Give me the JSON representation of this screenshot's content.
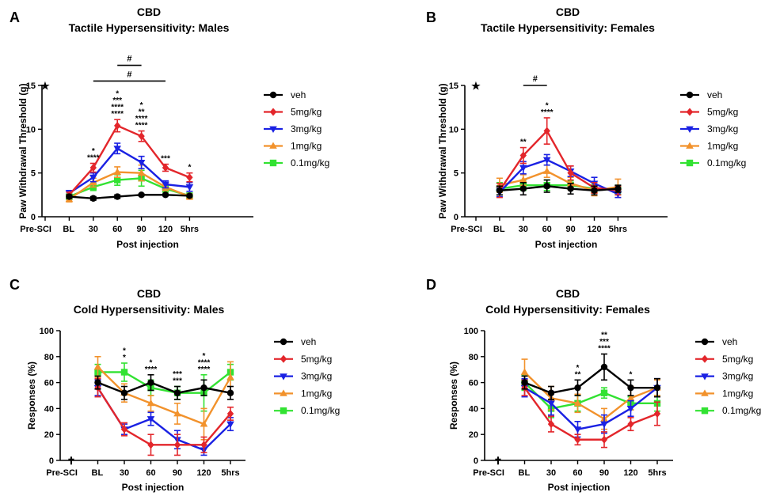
{
  "colors": {
    "veh": "#000000",
    "5mg/kg": "#e3262b",
    "3mg/kg": "#1a21e3",
    "1mg/kg": "#f2922c",
    "0.1mg/kg": "#32e232"
  },
  "chart_data": [
    {
      "panel": "A",
      "type": "line",
      "title": "CBD",
      "subtitle": "Tactile Hypersensitivity: Males",
      "xlabel": "Post injection",
      "ylabel": "Paw Withdrawal Threshold (g)",
      "categories": [
        "Pre-SCI",
        "BL",
        "30",
        "60",
        "90",
        "120",
        "5hrs"
      ],
      "ylim": [
        0,
        15
      ],
      "yticks": [
        0,
        5,
        10,
        15
      ],
      "prescI_marker": "★",
      "legend": [
        "veh",
        "5mg/kg",
        "3mg/kg",
        "1mg/kg",
        "0.1mg/kg"
      ],
      "series": [
        {
          "name": "veh",
          "marker": "circle",
          "values": [
            null,
            2.3,
            2.1,
            2.3,
            2.5,
            2.5,
            2.4
          ],
          "err": [
            null,
            0.2,
            0.2,
            0.2,
            0.1,
            0.1,
            0.1
          ]
        },
        {
          "name": "5mg/kg",
          "marker": "diamond",
          "values": [
            null,
            2.5,
            5.6,
            10.4,
            9.2,
            5.6,
            4.5
          ],
          "err": [
            null,
            0.3,
            0.5,
            0.7,
            0.6,
            0.4,
            0.5
          ]
        },
        {
          "name": "3mg/kg",
          "marker": "tri-down",
          "values": [
            null,
            2.7,
            4.5,
            7.8,
            6.2,
            3.7,
            3.4
          ],
          "err": [
            null,
            0.3,
            0.5,
            0.6,
            0.7,
            0.4,
            0.5
          ]
        },
        {
          "name": "1mg/kg",
          "marker": "tri-up",
          "values": [
            null,
            2.0,
            3.9,
            5.1,
            5.0,
            3.4,
            2.3
          ],
          "err": [
            null,
            0.3,
            0.5,
            0.6,
            0.9,
            0.4,
            0.3
          ]
        },
        {
          "name": "0.1mg/kg",
          "marker": "square",
          "values": [
            null,
            2.3,
            3.4,
            4.2,
            4.4,
            3.2,
            2.4
          ],
          "err": [
            null,
            0.3,
            0.4,
            0.6,
            0.9,
            0.4,
            0.3
          ]
        }
      ],
      "sig": [
        {
          "cat": "30",
          "lines": [
            {
              "t": "*",
              "c": "3mg/kg"
            },
            {
              "t": "****",
              "c": "5mg/kg"
            }
          ]
        },
        {
          "cat": "60",
          "lines": [
            {
              "t": "*",
              "c": "0.1mg/kg"
            },
            {
              "t": "***",
              "c": "1mg/kg"
            },
            {
              "t": "****",
              "c": "3mg/kg"
            },
            {
              "t": "****",
              "c": "5mg/kg"
            }
          ]
        },
        {
          "cat": "90",
          "lines": [
            {
              "t": "*",
              "c": "0.1mg/kg"
            },
            {
              "t": "**",
              "c": "1mg/kg"
            },
            {
              "t": "****",
              "c": "3mg/kg"
            },
            {
              "t": "****",
              "c": "5mg/kg"
            }
          ]
        },
        {
          "cat": "120",
          "lines": [
            {
              "t": "***",
              "c": "5mg/kg"
            }
          ]
        },
        {
          "cat": "5hrs",
          "lines": [
            {
              "t": "*",
              "c": "5mg/kg"
            }
          ]
        }
      ],
      "brackets": [
        {
          "from": "60",
          "to": "90",
          "label": "#",
          "c": "3mg/kg",
          "y": 17.3
        },
        {
          "from": "30",
          "to": "120",
          "label": "#",
          "c": "5mg/kg",
          "y": 15.5
        }
      ]
    },
    {
      "panel": "B",
      "type": "line",
      "title": "CBD",
      "subtitle": "Tactile Hypersensitivity: Females",
      "xlabel": "Post injection",
      "ylabel": "Paw Withdrawal Threshold (g)",
      "categories": [
        "Pre-SCI",
        "BL",
        "30",
        "60",
        "90",
        "120",
        "5hrs"
      ],
      "ylim": [
        0,
        15
      ],
      "yticks": [
        0,
        5,
        10,
        15
      ],
      "prescI_marker": "★",
      "legend": [
        "veh",
        "5mg/kg",
        "3mg/kg",
        "1mg/kg",
        "0.1mg/kg"
      ],
      "series": [
        {
          "name": "veh",
          "marker": "circle",
          "values": [
            null,
            3.0,
            3.2,
            3.5,
            3.2,
            3.0,
            3.2
          ],
          "err": [
            null,
            0.5,
            0.7,
            0.7,
            0.6,
            0.5,
            0.4
          ]
        },
        {
          "name": "5mg/kg",
          "marker": "diamond",
          "values": [
            null,
            3.0,
            7.0,
            9.8,
            5.0,
            3.3,
            3.0
          ],
          "err": [
            null,
            0.8,
            0.9,
            1.5,
            0.8,
            0.6,
            0.5
          ]
        },
        {
          "name": "3mg/kg",
          "marker": "tri-down",
          "values": [
            null,
            2.8,
            5.6,
            6.5,
            5.2,
            3.8,
            2.6
          ],
          "err": [
            null,
            0.5,
            0.7,
            0.6,
            0.6,
            0.7,
            0.4
          ]
        },
        {
          "name": "1mg/kg",
          "marker": "tri-up",
          "values": [
            null,
            3.6,
            4.2,
            5.2,
            3.8,
            3.0,
            3.4
          ],
          "err": [
            null,
            0.8,
            0.6,
            0.7,
            0.7,
            0.6,
            0.9
          ]
        },
        {
          "name": "0.1mg/kg",
          "marker": "square",
          "values": [
            null,
            3.2,
            3.6,
            3.6,
            3.6,
            3.2,
            3.1
          ],
          "err": [
            null,
            0.7,
            0.6,
            0.6,
            0.5,
            0.5,
            0.5
          ]
        }
      ],
      "sig": [
        {
          "cat": "30",
          "lines": [
            {
              "t": "**",
              "c": "5mg/kg"
            }
          ]
        },
        {
          "cat": "60",
          "lines": [
            {
              "t": "*",
              "c": "3mg/kg"
            },
            {
              "t": "****",
              "c": "5mg/kg"
            }
          ]
        }
      ],
      "brackets": [
        {
          "from": "30",
          "to": "60",
          "label": "#",
          "c": "5mg/kg",
          "y": 15.0
        }
      ]
    },
    {
      "panel": "C",
      "type": "line",
      "title": "CBD",
      "subtitle": "Cold Hypersensitivity: Males",
      "xlabel": "Post injection",
      "ylabel": "Responses (%)",
      "categories": [
        "Pre-SCI",
        "BL",
        "30",
        "60",
        "90",
        "120",
        "5hrs"
      ],
      "ylim": [
        0,
        100
      ],
      "yticks": [
        0,
        20,
        40,
        60,
        80,
        100
      ],
      "prescI_marker": "✝",
      "legend": [
        "veh",
        "5mg/kg",
        "3mg/kg",
        "1mg/kg",
        "0.1mg/kg"
      ],
      "series": [
        {
          "name": "veh",
          "marker": "circle",
          "values": [
            null,
            60,
            52,
            60,
            52,
            56,
            52
          ],
          "err": [
            null,
            5,
            5,
            6,
            5,
            6,
            5
          ]
        },
        {
          "name": "5mg/kg",
          "marker": "diamond",
          "values": [
            null,
            56,
            24,
            12,
            12,
            12,
            36
          ],
          "err": [
            null,
            7,
            5,
            8,
            8,
            6,
            5
          ]
        },
        {
          "name": "3mg/kg",
          "marker": "tri-down",
          "values": [
            null,
            56,
            24,
            32,
            16,
            8,
            28
          ],
          "err": [
            null,
            6,
            4,
            5,
            7,
            4,
            5
          ]
        },
        {
          "name": "1mg/kg",
          "marker": "tri-up",
          "values": [
            null,
            72,
            52,
            44,
            36,
            28,
            64
          ],
          "err": [
            null,
            8,
            7,
            6,
            8,
            12,
            12
          ]
        },
        {
          "name": "0.1mg/kg",
          "marker": "square",
          "values": [
            null,
            68,
            68,
            56,
            52,
            52,
            68
          ],
          "err": [
            null,
            6,
            7,
            6,
            5,
            14,
            6
          ]
        }
      ],
      "sig": [
        {
          "cat": "30",
          "lines": [
            {
              "t": "*",
              "c": "3mg/kg"
            },
            {
              "t": "*",
              "c": "5mg/kg"
            }
          ]
        },
        {
          "cat": "60",
          "lines": [
            {
              "t": "*",
              "c": "3mg/kg"
            },
            {
              "t": "****",
              "c": "5mg/kg"
            }
          ]
        },
        {
          "cat": "90",
          "lines": [
            {
              "t": "***",
              "c": "3mg/kg"
            },
            {
              "t": "***",
              "c": "5mg/kg"
            }
          ]
        },
        {
          "cat": "120",
          "lines": [
            {
              "t": "*",
              "c": "1mg/kg"
            },
            {
              "t": "****",
              "c": "3mg/kg"
            },
            {
              "t": "****",
              "c": "5mg/kg"
            }
          ]
        }
      ],
      "brackets": []
    },
    {
      "panel": "D",
      "type": "line",
      "title": "CBD",
      "subtitle": "Cold Hypersensitivity: Females",
      "xlabel": "Post injection",
      "ylabel": "Responses (%)",
      "categories": [
        "Pre-SCI",
        "BL",
        "30",
        "60",
        "90",
        "120",
        "5hrs"
      ],
      "ylim": [
        0,
        100
      ],
      "yticks": [
        0,
        20,
        40,
        60,
        80,
        100
      ],
      "prescI_marker": "✝",
      "legend": [
        "veh",
        "5mg/kg",
        "3mg/kg",
        "1mg/kg",
        "0.1mg/kg"
      ],
      "series": [
        {
          "name": "veh",
          "marker": "circle",
          "values": [
            null,
            60,
            52,
            56,
            72,
            56,
            56
          ],
          "err": [
            null,
            5,
            5,
            6,
            10,
            6,
            7
          ]
        },
        {
          "name": "5mg/kg",
          "marker": "diamond",
          "values": [
            null,
            56,
            28,
            16,
            16,
            28,
            36
          ],
          "err": [
            null,
            6,
            6,
            4,
            6,
            5,
            9
          ]
        },
        {
          "name": "3mg/kg",
          "marker": "tri-down",
          "values": [
            null,
            56,
            44,
            24,
            28,
            40,
            56
          ],
          "err": [
            null,
            7,
            9,
            6,
            7,
            6,
            7
          ]
        },
        {
          "name": "1mg/kg",
          "marker": "tri-up",
          "values": [
            null,
            68,
            48,
            44,
            32,
            48,
            56
          ],
          "err": [
            null,
            10,
            9,
            7,
            8,
            9,
            6
          ]
        },
        {
          "name": "0.1mg/kg",
          "marker": "square",
          "values": [
            null,
            60,
            40,
            44,
            52,
            44,
            44
          ],
          "err": [
            null,
            6,
            7,
            6,
            4,
            5,
            6
          ]
        }
      ],
      "sig": [
        {
          "cat": "60",
          "lines": [
            {
              "t": "*",
              "c": "3mg/kg"
            },
            {
              "t": "**",
              "c": "5mg/kg"
            }
          ]
        },
        {
          "cat": "90",
          "lines": [
            {
              "t": "**",
              "c": "1mg/kg"
            },
            {
              "t": "***",
              "c": "3mg/kg"
            },
            {
              "t": "****",
              "c": "5mg/kg"
            }
          ]
        },
        {
          "cat": "120",
          "lines": [
            {
              "t": "*",
              "c": "5mg/kg"
            }
          ]
        }
      ],
      "brackets": []
    }
  ]
}
